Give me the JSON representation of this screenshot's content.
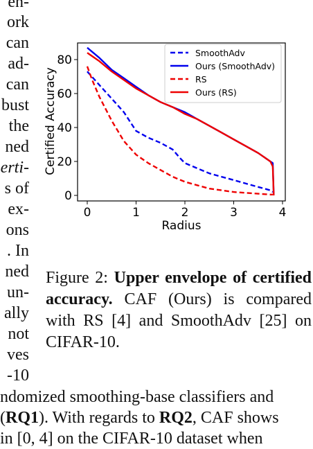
{
  "left_column_fragments": [
    "en-",
    "ork",
    "can",
    "ad-",
    "can",
    "bust",
    "the",
    "ned",
    "erti-",
    "s of",
    "ex-",
    "ons",
    ". In",
    "ned",
    "un-",
    "ally",
    "not",
    "ves",
    "-10"
  ],
  "figure": {
    "label": "Figure 2:",
    "title": "Upper envelope of certified accuracy.",
    "text": "CAF (Ours) is compared with RS [4] and SmoothAdv [25] on CIFAR-10."
  },
  "bottom_lines": [
    {
      "pre": "ndomized smoothing-base classifiers and",
      "bold": "",
      "post": ""
    },
    {
      "pre": "(",
      "bold": "RQ1",
      "post": "). With regards to ",
      "bold2": "RQ2",
      "post2": ", CAF shows"
    },
    {
      "pre": "in [0, 4] on the CIFAR-10 dataset when",
      "bold": "",
      "post": ""
    }
  ],
  "chart_data": {
    "type": "line",
    "xlabel": "Radius",
    "ylabel": "Certified Accuracy",
    "xlim": [
      0,
      4
    ],
    "ylim": [
      0,
      90
    ],
    "xticks": [
      "0",
      "1",
      "2",
      "3",
      "4"
    ],
    "yticks": [
      "0",
      "20",
      "40",
      "60",
      "80"
    ],
    "legend_position": "top-right",
    "series": [
      {
        "name": "SmoothAdv",
        "color": "#0000ee",
        "style": "dashed",
        "x": [
          0,
          0.25,
          0.5,
          0.75,
          1.0,
          1.25,
          1.5,
          1.75,
          1.9,
          2.0,
          2.25,
          2.5,
          2.75,
          3.0,
          3.25,
          3.5,
          3.75,
          3.8
        ],
        "y": [
          73,
          65,
          57,
          49,
          38,
          34,
          31,
          27,
          22,
          19,
          16,
          13,
          11,
          9,
          7,
          5,
          3,
          2
        ]
      },
      {
        "name": "Ours (SmoothAdv)",
        "color": "#0000ee",
        "style": "solid",
        "x": [
          0,
          0.25,
          0.5,
          0.75,
          1.0,
          1.25,
          1.5,
          1.75,
          2.0,
          2.25,
          2.5,
          2.75,
          3.0,
          3.25,
          3.5,
          3.75,
          3.8,
          3.82
        ],
        "y": [
          87,
          81,
          74,
          69,
          64,
          59,
          55,
          52,
          49,
          45,
          41,
          37,
          33,
          29,
          25,
          20,
          19,
          0
        ]
      },
      {
        "name": "RS",
        "color": "#ee0000",
        "style": "dashed",
        "x": [
          0,
          0.1,
          0.25,
          0.5,
          0.75,
          1.0,
          1.25,
          1.5,
          1.75,
          2.0,
          2.25,
          2.5,
          2.75,
          3.0,
          3.25,
          3.5,
          3.75,
          3.8
        ],
        "y": [
          76,
          68,
          58,
          44,
          32,
          24,
          19,
          15,
          11,
          8,
          6,
          4,
          3,
          2,
          1.5,
          1,
          0.5,
          0.5
        ]
      },
      {
        "name": "Ours (RS)",
        "color": "#ee0000",
        "style": "solid",
        "x": [
          0,
          0.25,
          0.5,
          0.75,
          1.0,
          1.25,
          1.5,
          1.75,
          2.0,
          2.25,
          2.5,
          2.75,
          3.0,
          3.25,
          3.5,
          3.75,
          3.8,
          3.82
        ],
        "y": [
          84,
          79,
          73,
          68,
          63,
          59,
          55,
          52,
          48,
          45,
          41,
          37,
          33,
          29,
          25,
          20,
          17,
          0
        ]
      }
    ]
  }
}
